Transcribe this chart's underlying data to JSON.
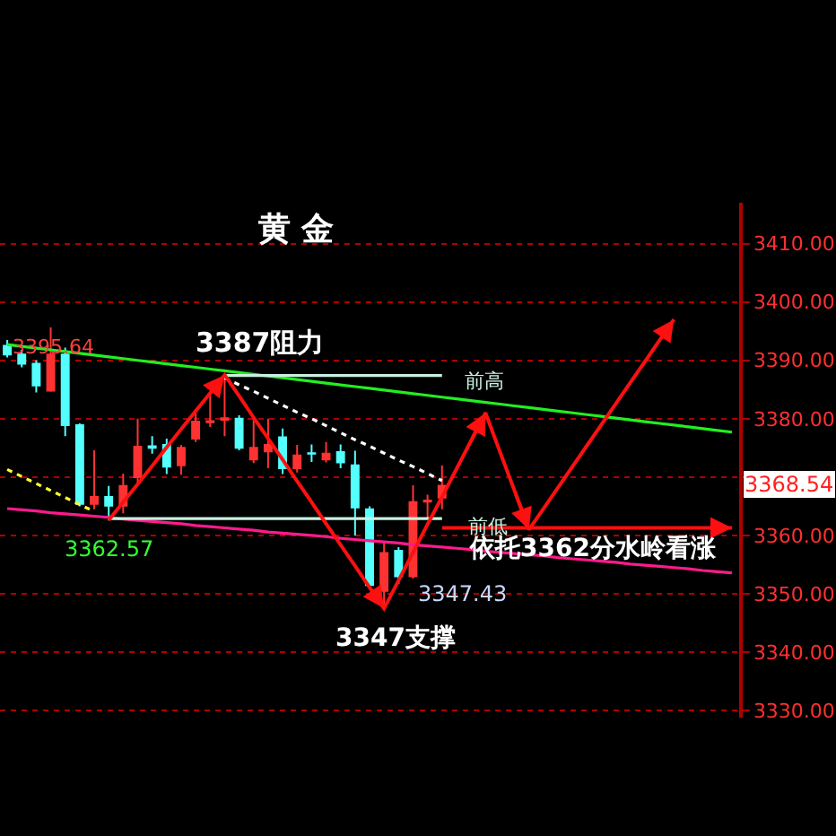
{
  "chart_data": {
    "type": "candlestick",
    "title": "黄 金",
    "categories": [
      null,
      null,
      null,
      null,
      null,
      null,
      null,
      null,
      null,
      null,
      null,
      null,
      null,
      null,
      null,
      null,
      null,
      null,
      null,
      null,
      null,
      null,
      null,
      null,
      null,
      null,
      null,
      null,
      null,
      null,
      null,
      null,
      null,
      null,
      null,
      null,
      null,
      null,
      null,
      null,
      null,
      null,
      null,
      null,
      null,
      null,
      null,
      null,
      null,
      null,
      null
    ],
    "ohlc": [
      [
        3392.5,
        3393.5,
        3390.5,
        3391
      ],
      [
        3391,
        3391.8,
        3388.8,
        3389.4
      ],
      [
        3389.4,
        3390,
        3384.5,
        3385.7
      ],
      [
        3384.8,
        3395.64,
        3384.6,
        3391
      ],
      [
        3391,
        3392.2,
        3377,
        3378.9
      ],
      [
        3378.9,
        3379.2,
        3365,
        3365.4
      ],
      [
        3365.4,
        3374.6,
        3364.5,
        3366.6
      ],
      [
        3366.6,
        3368.5,
        3362.57,
        3365.1
      ],
      [
        3365.1,
        3370.6,
        3363.8,
        3368.5
      ],
      [
        3370,
        3380,
        3368.6,
        3375.2
      ],
      [
        3375.3,
        3377,
        3374,
        3375
      ],
      [
        3375.5,
        3376.6,
        3370.5,
        3371.8
      ],
      [
        3372,
        3375.5,
        3370.4,
        3375
      ],
      [
        3376.6,
        3381,
        3376,
        3379.5
      ],
      [
        3379.4,
        3384.7,
        3378.6,
        3379.6
      ],
      [
        3379.8,
        3387,
        3377,
        3380.1
      ],
      [
        3380,
        3380.6,
        3374.6,
        3375
      ],
      [
        3373,
        3380,
        3372.4,
        3375
      ],
      [
        3374.4,
        3380,
        3371.5,
        3375.5
      ],
      [
        3376.8,
        3378.3,
        3370.5,
        3371.5
      ],
      [
        3371.5,
        3375.5,
        3370.8,
        3373.7
      ],
      [
        3374.1,
        3375.6,
        3372.6,
        3374
      ],
      [
        3373,
        3376,
        3372.5,
        3374
      ],
      [
        3374.3,
        3375.6,
        3371.5,
        3372.5
      ],
      [
        3372,
        3374.5,
        3360,
        3364.8
      ],
      [
        3364.5,
        3365,
        3351,
        3351.5
      ],
      [
        3350.5,
        3359,
        3347.43,
        3357
      ],
      [
        3357.4,
        3358,
        3351.7,
        3353
      ],
      [
        3353,
        3368.6,
        3352.6,
        3365.7
      ],
      [
        3365.8,
        3367,
        3363,
        3366
      ],
      [
        3366.5,
        3372,
        3364.5,
        3368.54
      ],
      null,
      null,
      null,
      null,
      null,
      null,
      null,
      null,
      null,
      null,
      null,
      null,
      null,
      null,
      null,
      null,
      null,
      null,
      null,
      null
    ],
    "series": [
      {
        "type": "line",
        "color": "#22ee22",
        "values": [
          3392.7,
          3392.4,
          3392.1,
          3391.8,
          3391.5,
          3391.2,
          3390.9,
          3390.6,
          3390.3,
          3390.0,
          3389.7,
          3389.4,
          3389.1,
          3388.8,
          3388.5,
          3388.2,
          3387.9,
          3387.6,
          3387.3,
          3387.0,
          3386.7,
          3386.4,
          3386.1,
          3385.8,
          3385.5,
          3385.2,
          3384.9,
          3384.6,
          3384.3,
          3384.0,
          3383.7,
          3383.4,
          3383.1,
          3382.8,
          3382.5,
          3382.2,
          3381.9,
          3381.6,
          3381.3,
          3381.0,
          3380.7,
          3380.4,
          3380.1,
          3379.8,
          3379.5,
          3379.2,
          3378.9,
          3378.6,
          3378.3,
          3378.0,
          3377.7
        ]
      },
      {
        "type": "line",
        "color": "#ff1a8c",
        "values": [
          3364.6,
          3364.4,
          3364.2,
          3363.9,
          3363.7,
          3363.5,
          3363.3,
          3363.1,
          3362.8,
          3362.6,
          3362.4,
          3362.2,
          3362.0,
          3361.7,
          3361.5,
          3361.3,
          3361.1,
          3360.9,
          3360.6,
          3360.4,
          3360.2,
          3360.0,
          3359.8,
          3359.5,
          3359.3,
          3359.1,
          3358.9,
          3358.7,
          3358.4,
          3358.2,
          3358.0,
          3357.8,
          3357.6,
          3357.3,
          3357.1,
          3356.9,
          3356.7,
          3356.5,
          3356.2,
          3356.0,
          3355.8,
          3355.6,
          3355.4,
          3355.1,
          3354.9,
          3354.7,
          3354.5,
          3354.3,
          3354.0,
          3353.8,
          3353.6
        ]
      },
      {
        "type": "line",
        "color": "#ffff33",
        "line_style": "dotted",
        "values": [
          3371.3,
          3370.1,
          3368.9,
          3367.7,
          3366.5,
          3365.3,
          3364.1,
          null,
          null,
          null,
          null,
          null,
          null,
          null,
          null,
          null,
          null,
          null,
          null,
          null,
          null,
          null,
          null,
          null,
          null,
          null,
          null,
          null,
          null,
          null,
          null,
          null,
          null,
          null,
          null,
          null,
          null,
          null,
          null,
          null,
          null,
          null,
          null,
          null,
          null,
          null,
          null,
          null,
          null,
          null,
          null
        ]
      },
      {
        "type": "line",
        "color": "#ffffff",
        "line_style": "dotted",
        "values": [
          null,
          null,
          null,
          null,
          null,
          null,
          null,
          null,
          null,
          null,
          null,
          null,
          null,
          null,
          null,
          3387.0,
          3385.8,
          3384.7,
          3383.5,
          3382.3,
          3381.1,
          3380.0,
          3378.8,
          3377.6,
          3376.4,
          3375.3,
          3374.1,
          3372.9,
          3371.8,
          3370.6,
          3369.4,
          null,
          null,
          null,
          null,
          null,
          null,
          null,
          null,
          null,
          null,
          null,
          null,
          null,
          null,
          null,
          null,
          null,
          null,
          null,
          null
        ]
      },
      {
        "type": "line",
        "color": "#c8f0e0",
        "values": [
          null,
          null,
          null,
          null,
          null,
          null,
          null,
          null,
          null,
          null,
          null,
          null,
          null,
          null,
          null,
          3387.4,
          3387.4,
          3387.4,
          3387.4,
          3387.4,
          3387.4,
          3387.4,
          3387.4,
          3387.4,
          3387.4,
          3387.4,
          3387.4,
          3387.4,
          3387.4,
          3387.4,
          3387.4,
          null,
          null,
          null,
          null,
          null,
          null,
          null,
          null,
          null,
          null,
          null,
          null,
          null,
          null,
          null,
          null,
          null,
          null,
          null,
          null
        ]
      },
      {
        "type": "line",
        "color": "#c8f0e0",
        "values": [
          null,
          null,
          null,
          null,
          null,
          null,
          null,
          3362.9,
          3362.9,
          3362.9,
          3362.9,
          3362.9,
          3362.9,
          3362.9,
          3362.9,
          3362.9,
          3362.9,
          3362.9,
          3362.9,
          3362.9,
          3362.9,
          3362.9,
          3362.9,
          3362.9,
          3362.9,
          3362.9,
          3362.9,
          3362.9,
          3362.9,
          3362.9,
          3362.9,
          null,
          null,
          null,
          null,
          null,
          null,
          null,
          null,
          null,
          null,
          null,
          null,
          null,
          null,
          null,
          null,
          null,
          null,
          null,
          null
        ]
      },
      {
        "type": "line",
        "color": "#ff1010",
        "values": [
          null,
          null,
          null,
          null,
          null,
          null,
          null,
          3362.6,
          3365.7,
          3368.8,
          3371.9,
          3375.1,
          3378.2,
          3381.3,
          3384.4,
          3387.5,
          3383.9,
          3380.2,
          3376.6,
          3373.0,
          3369.3,
          3365.7,
          3362.0,
          3358.4,
          3354.8,
          3351.1,
          3347.5,
          3352.3,
          3357.1,
          3361.9,
          3366.6,
          3371.4,
          3376.2,
          3381.0,
          3374.3,
          3367.7,
          3361.0,
          3364.6,
          3368.2,
          3371.8,
          3375.4,
          3379.0,
          3382.6,
          3386.2,
          3389.8,
          3393.4,
          3397.0,
          null,
          null,
          null,
          null
        ]
      },
      {
        "type": "line",
        "color": "#ff1010",
        "values": [
          null,
          null,
          null,
          null,
          null,
          null,
          null,
          null,
          null,
          null,
          null,
          null,
          null,
          null,
          null,
          null,
          null,
          null,
          null,
          null,
          null,
          null,
          null,
          null,
          null,
          null,
          null,
          null,
          null,
          null,
          3361.3,
          3361.3,
          3361.3,
          3361.3,
          3361.3,
          3361.3,
          3361.3,
          3361.3,
          3361.3,
          3361.3,
          3361.3,
          3361.3,
          3361.3,
          3361.3,
          3361.3,
          3361.3,
          3361.3,
          3361.3,
          3361.3,
          3361.3,
          3361.3
        ]
      }
    ],
    "ylim": [
      3328.8,
      3417
    ],
    "yticks": [
      {
        "value": 3330,
        "label": "3330.00"
      },
      {
        "value": 3340,
        "label": "3340.00"
      },
      {
        "value": 3350,
        "label": "3350.00"
      },
      {
        "value": 3360,
        "label": "3360.00"
      },
      {
        "value": 3370,
        "label": null
      },
      {
        "value": 3380,
        "label": "3380.00"
      },
      {
        "value": 3390,
        "label": "3390.00"
      },
      {
        "value": 3400,
        "label": "3400.00"
      },
      {
        "value": 3410,
        "label": "3410.00"
      }
    ],
    "tick_labels": "y",
    "grid": "y",
    "annotations": [
      "3395.64",
      {
        "text": "3387阻力",
        "y": 3387
      },
      "前高",
      {
        "text": "3362.57",
        "y": 3362.57
      },
      "前低",
      "3347.43",
      "3347支撑",
      "依托3362分水岭看涨",
      "3368.54"
    ]
  }
}
